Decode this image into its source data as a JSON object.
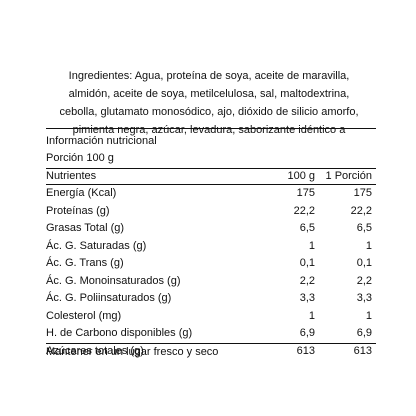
{
  "ingredients": {
    "lines": [
      "Ingredientes: Agua, proteína de soya, aceite de maravilla,",
      "almidón, aceite de soya, metilcelulosa, sal, maltodextrina,",
      "cebolla, glutamato monosódico, ajo, dióxido de silicio amorfo,",
      "pimienta negra, azúcar, levadura, saborizante idéntico a"
    ]
  },
  "nutrition": {
    "title": "Información nutricional",
    "portion": "Porción 100 g",
    "headers": {
      "name": "Nutrientes",
      "per100": "100 g",
      "perPortion": "1 Porción"
    },
    "rows": [
      {
        "name": "Energía (Kcal)",
        "per100": "175",
        "perPortion": "175"
      },
      {
        "name": "Proteínas (g)",
        "per100": "22,2",
        "perPortion": "22,2"
      },
      {
        "name": "Grasas Total (g)",
        "per100": "6,5",
        "perPortion": "6,5"
      },
      {
        "name": "Ác. G. Saturadas (g)",
        "per100": "1",
        "perPortion": "1"
      },
      {
        "name": "Ác. G. Trans (g)",
        "per100": "0,1",
        "perPortion": "0,1"
      },
      {
        "name": "Ác. G. Monoinsaturados (g)",
        "per100": "2,2",
        "perPortion": "2,2"
      },
      {
        "name": "Ác. G. Poliinsaturados (g)",
        "per100": "3,3",
        "perPortion": "3,3"
      },
      {
        "name": "Colesterol (mg)",
        "per100": "1",
        "perPortion": "1"
      },
      {
        "name": "H. de Carbono disponibles (g)",
        "per100": "6,9",
        "perPortion": "6,9"
      },
      {
        "name": "Azúcares totales (g)",
        "per100": "613",
        "perPortion": "613"
      }
    ]
  },
  "footer": "Mantener en un lugar fresco y seco"
}
